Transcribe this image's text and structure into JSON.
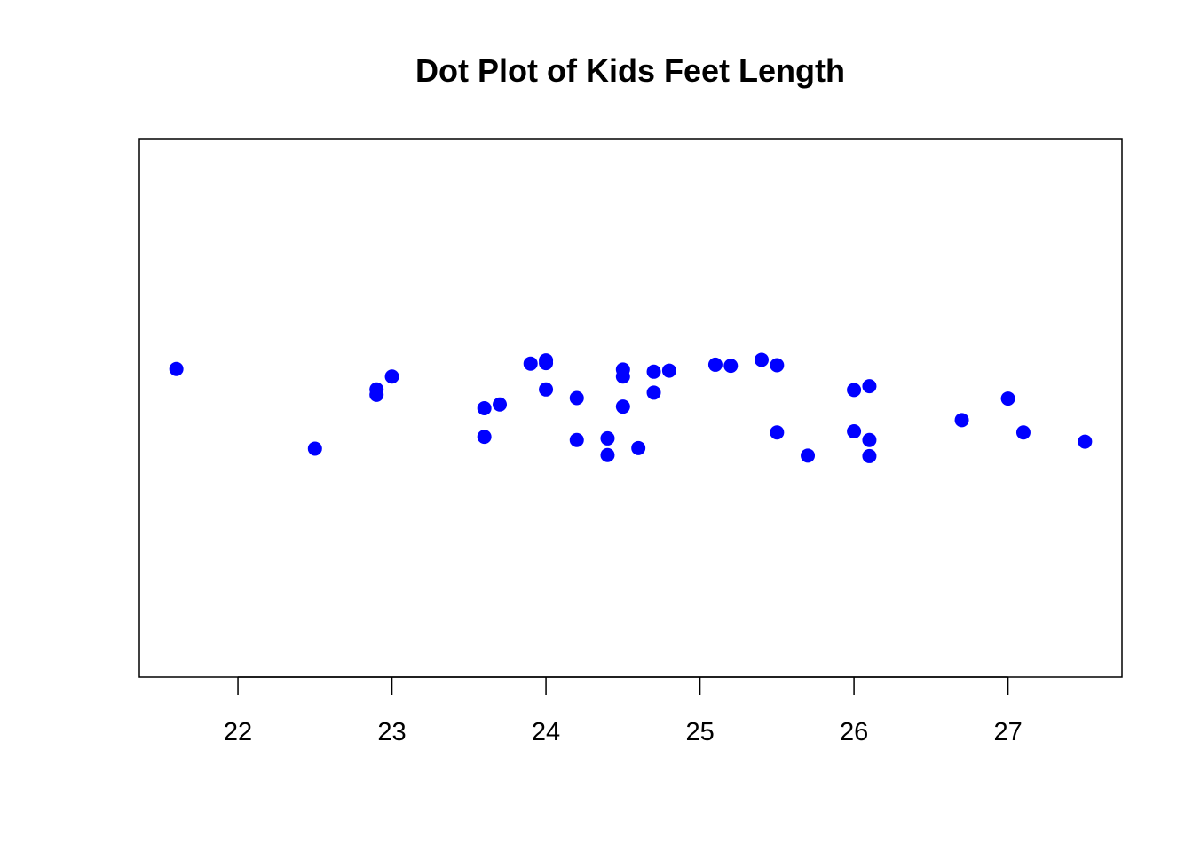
{
  "chart_data": {
    "type": "scatter",
    "title": "Dot Plot of Kids Feet Length",
    "xlabel": "",
    "ylabel": "",
    "x_ticks": [
      22,
      23,
      24,
      25,
      26,
      27
    ],
    "x_tick_labels": [
      "22",
      "23",
      "24",
      "25",
      "26",
      "27"
    ],
    "xlim": [
      21.36,
      27.74
    ],
    "ylim": [
      0,
      1
    ],
    "y_axis_shown": false,
    "jitter": true,
    "grid": false,
    "legend": "none",
    "point_color": "#0000ff",
    "points": [
      {
        "x": 21.6,
        "y": 0.573
      },
      {
        "x": 22.5,
        "y": 0.425
      },
      {
        "x": 22.9,
        "y": 0.535
      },
      {
        "x": 22.9,
        "y": 0.525
      },
      {
        "x": 23.0,
        "y": 0.559
      },
      {
        "x": 23.6,
        "y": 0.5
      },
      {
        "x": 23.6,
        "y": 0.447
      },
      {
        "x": 23.7,
        "y": 0.507
      },
      {
        "x": 23.9,
        "y": 0.583
      },
      {
        "x": 24.0,
        "y": 0.589
      },
      {
        "x": 24.0,
        "y": 0.584
      },
      {
        "x": 24.0,
        "y": 0.535
      },
      {
        "x": 24.2,
        "y": 0.519
      },
      {
        "x": 24.2,
        "y": 0.441
      },
      {
        "x": 24.4,
        "y": 0.444
      },
      {
        "x": 24.4,
        "y": 0.413
      },
      {
        "x": 24.5,
        "y": 0.572
      },
      {
        "x": 24.5,
        "y": 0.559
      },
      {
        "x": 24.5,
        "y": 0.503
      },
      {
        "x": 24.6,
        "y": 0.426
      },
      {
        "x": 24.7,
        "y": 0.568
      },
      {
        "x": 24.7,
        "y": 0.529
      },
      {
        "x": 24.8,
        "y": 0.57
      },
      {
        "x": 25.1,
        "y": 0.581
      },
      {
        "x": 25.2,
        "y": 0.579
      },
      {
        "x": 25.4,
        "y": 0.59
      },
      {
        "x": 25.5,
        "y": 0.58
      },
      {
        "x": 25.5,
        "y": 0.455
      },
      {
        "x": 25.7,
        "y": 0.412
      },
      {
        "x": 26.0,
        "y": 0.534
      },
      {
        "x": 26.0,
        "y": 0.457
      },
      {
        "x": 26.1,
        "y": 0.541
      },
      {
        "x": 26.1,
        "y": 0.441
      },
      {
        "x": 26.1,
        "y": 0.411
      },
      {
        "x": 26.7,
        "y": 0.478
      },
      {
        "x": 27.0,
        "y": 0.518
      },
      {
        "x": 27.1,
        "y": 0.455
      },
      {
        "x": 27.5,
        "y": 0.438
      }
    ]
  }
}
